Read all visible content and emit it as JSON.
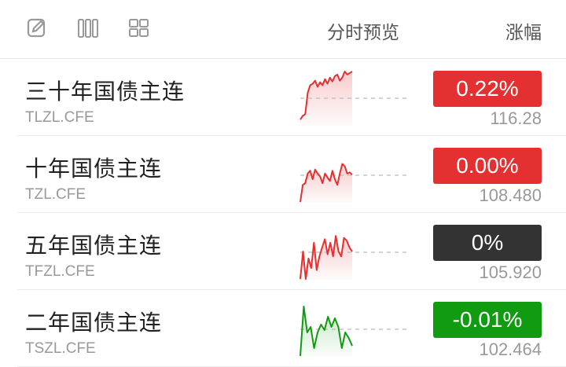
{
  "header": {
    "icons": [
      "edit-icon",
      "columns-icon",
      "grid-icon"
    ],
    "col_preview": "分时预览",
    "col_change": "涨幅"
  },
  "colors": {
    "up": "#e43030",
    "down": "#109b10",
    "flat": "#333333"
  },
  "rows": [
    {
      "name": "三十年国债主连",
      "code": "TLZL.CFE",
      "change": "0.22%",
      "price": "116.28",
      "trend": "up",
      "sparkline": [
        -28,
        -23,
        -21,
        7,
        17,
        19,
        23,
        15,
        21,
        17,
        25,
        19,
        27,
        22,
        29,
        31,
        23,
        27,
        35,
        31,
        33,
        35
      ]
    },
    {
      "name": "十年国债主连",
      "code": "TZL.CFE",
      "change": "0.00%",
      "price": "108.480",
      "trend": "up",
      "sparkline": [
        -47,
        -17,
        -14,
        3,
        8,
        -7,
        10,
        3,
        -2,
        -14,
        3,
        -4,
        -10,
        8,
        -7,
        -17,
        3,
        20,
        16,
        3,
        5,
        1
      ]
    },
    {
      "name": "五年国债主连",
      "code": "TFZL.CFE",
      "change": "0%",
      "price": "105.920",
      "trend": "flat",
      "sparkline": [
        -39,
        1,
        -39,
        -9,
        -23,
        14,
        -26,
        -6,
        7,
        19,
        -3,
        14,
        -6,
        24,
        1,
        -6,
        21,
        17,
        7,
        1
      ]
    },
    {
      "name": "二年国债主连",
      "code": "TSZL.CFE",
      "change": "-0.01%",
      "price": "102.464",
      "trend": "down",
      "sparkline": [
        -34,
        29,
        -4,
        3,
        -24,
        -4,
        6,
        -1,
        16,
        3,
        14,
        3,
        -24,
        -4,
        -11,
        -21
      ]
    }
  ]
}
